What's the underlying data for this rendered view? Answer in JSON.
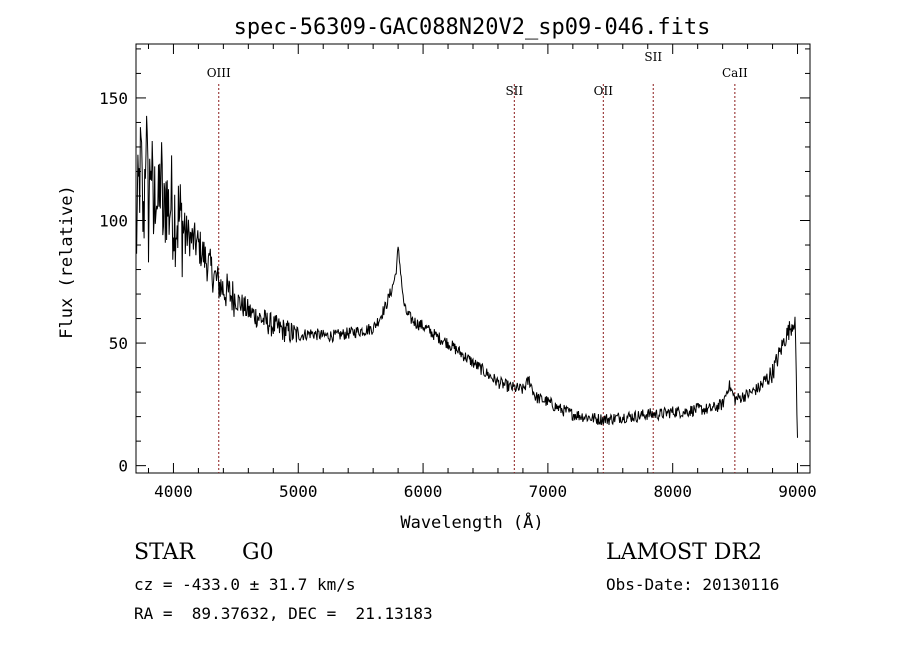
{
  "chart_data": {
    "type": "line",
    "title": "spec-56309-GAC088N20V2_sp09-046.fits",
    "xlabel": "Wavelength (Å)",
    "ylabel": "Flux (relative)",
    "xlim": [
      3700,
      9100
    ],
    "ylim": [
      -3,
      172
    ],
    "x_ticks": [
      4000,
      5000,
      6000,
      7000,
      8000,
      9000
    ],
    "y_ticks": [
      0,
      50,
      100,
      150
    ],
    "grid": false,
    "legend": "none",
    "line_color": "#000000",
    "marker_color": "#8b1a1a",
    "series": [
      {
        "x": [
          3700,
          3720,
          3740,
          3760,
          3780,
          3800,
          3820,
          3840,
          3860,
          3880,
          3900,
          3920,
          3940,
          3960,
          3980,
          4000,
          4050,
          4100,
          4150,
          4200,
          4250,
          4300,
          4350,
          4400,
          4450,
          4500,
          4600,
          4700,
          4800,
          4900,
          5000,
          5100,
          5200,
          5300,
          5400,
          5500,
          5600,
          5650,
          5700,
          5750,
          5780,
          5800,
          5820,
          5840,
          5860,
          5900,
          5950,
          6000,
          6100,
          6200,
          6300,
          6400,
          6500,
          6600,
          6700,
          6800,
          6850,
          6900,
          7000,
          7100,
          7200,
          7300,
          7400,
          7500,
          7600,
          7700,
          7800,
          7900,
          8000,
          8100,
          8200,
          8300,
          8400,
          8450,
          8500,
          8600,
          8700,
          8800,
          8850,
          8900,
          8950,
          8980,
          9000
        ],
        "y": [
          90,
          110,
          125,
          95,
          140,
          100,
          130,
          98,
          118,
          102,
          122,
          96,
          112,
          104,
          108,
          104,
          100,
          95,
          92,
          90,
          85,
          80,
          75,
          72,
          70,
          68,
          63,
          60,
          57,
          55,
          53,
          54,
          53,
          53,
          54,
          55,
          56,
          60,
          65,
          72,
          78,
          88,
          80,
          68,
          63,
          60,
          58,
          57,
          53,
          50,
          46,
          42,
          38,
          34,
          32,
          31,
          35,
          28,
          26,
          23,
          21,
          20,
          19,
          19,
          20,
          20,
          21,
          21,
          22,
          22,
          23,
          23,
          25,
          33,
          27,
          29,
          32,
          38,
          45,
          52,
          57,
          60,
          10
        ]
      }
    ],
    "lines": [
      {
        "label": "OIII",
        "wavelength": 4363,
        "label_row": "upper"
      },
      {
        "label": "SII",
        "wavelength": 6731,
        "label_row": "lower"
      },
      {
        "label": "OII",
        "wavelength": 7444,
        "label_row": "lower"
      },
      {
        "label": "SII",
        "wavelength": 7844,
        "label_row": "top"
      },
      {
        "label": "CaII",
        "wavelength": 8498,
        "label_row": "upper"
      }
    ]
  },
  "info": {
    "object_class": "STAR",
    "subclass": "G0",
    "survey": "LAMOST DR2",
    "redshift": "cz = -433.0 ± 31.7 km/s",
    "obs_date": "Obs-Date: 20130116",
    "coords": "RA =  89.37632, DEC =  21.13183"
  }
}
